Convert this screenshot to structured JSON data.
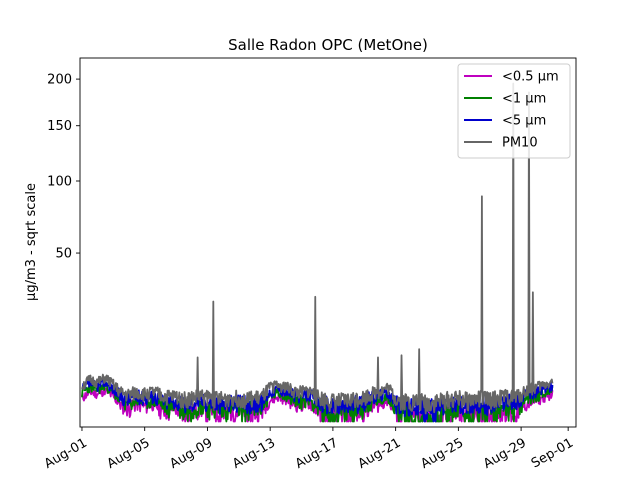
{
  "chart_data": {
    "type": "line",
    "title": "Salle Radon OPC (MetOne)",
    "ylabel": "µg/m3 - sqrt scale",
    "xlabel": "",
    "y_scale": "sqrt",
    "ylim": [
      0,
      225
    ],
    "y_ticks": [
      50,
      100,
      150,
      200
    ],
    "x_range": [
      "Jul-31 21:00",
      "Sep-01 12:00"
    ],
    "x_ticks": [
      "Aug-01",
      "Aug-05",
      "Aug-09",
      "Aug-13",
      "Aug-17",
      "Aug-21",
      "Aug-25",
      "Aug-29",
      "Sep-01"
    ],
    "grid": false,
    "legend_position": "top-right",
    "series": [
      {
        "name": "<0.5 µm",
        "color": "#bf00bf",
        "x": [
          "Aug-01 00:00",
          "Aug-01 12:00",
          "Aug-02 00:00",
          "Aug-02 12:00",
          "Aug-03 00:00",
          "Aug-03 12:00",
          "Aug-04 00:00",
          "Aug-04 12:00",
          "Aug-05 00:00",
          "Aug-05 12:00",
          "Aug-06 00:00",
          "Aug-06 12:00",
          "Aug-07 00:00",
          "Aug-07 12:00",
          "Aug-08 00:00",
          "Aug-08 12:00",
          "Aug-09 00:00",
          "Aug-09 12:00",
          "Aug-10 00:00",
          "Aug-10 12:00",
          "Aug-11 00:00",
          "Aug-11 12:00",
          "Aug-12 00:00",
          "Aug-12 12:00",
          "Aug-13 00:00",
          "Aug-13 12:00",
          "Aug-14 00:00",
          "Aug-14 12:00",
          "Aug-15 00:00",
          "Aug-15 12:00",
          "Aug-16 00:00",
          "Aug-16 12:00",
          "Aug-17 00:00",
          "Aug-17 12:00",
          "Aug-18 00:00",
          "Aug-18 12:00",
          "Aug-19 00:00",
          "Aug-19 12:00",
          "Aug-20 00:00",
          "Aug-20 12:00",
          "Aug-21 00:00",
          "Aug-21 12:00",
          "Aug-22 00:00",
          "Aug-22 12:00",
          "Aug-23 00:00",
          "Aug-23 12:00",
          "Aug-24 00:00",
          "Aug-24 12:00",
          "Aug-25 00:00",
          "Aug-25 12:00",
          "Aug-26 00:00",
          "Aug-26 12:00",
          "Aug-27 00:00",
          "Aug-27 12:00",
          "Aug-28 00:00",
          "Aug-28 12:00",
          "Aug-29 00:00",
          "Aug-29 12:00",
          "Aug-30 00:00",
          "Aug-30 12:00",
          "Aug-31 00:00"
        ],
        "values": [
          1.4,
          2.0,
          1.8,
          2.2,
          1.5,
          0.8,
          0.6,
          0.9,
          0.7,
          0.9,
          0.6,
          0.5,
          0.6,
          0.3,
          0.4,
          0.6,
          0.5,
          0.4,
          0.3,
          0.5,
          0.4,
          0.3,
          0.4,
          0.5,
          1.2,
          1.5,
          1.3,
          0.9,
          0.8,
          1.0,
          0.5,
          0.3,
          0.2,
          0.2,
          0.3,
          0.4,
          0.5,
          0.7,
          0.9,
          1.2,
          0.4,
          0.3,
          0.2,
          0.3,
          0.4,
          0.3,
          0.2,
          0.3,
          0.4,
          0.2,
          0.3,
          0.4,
          0.3,
          0.4,
          0.5,
          0.3,
          0.6,
          1.0,
          1.2,
          1.5,
          1.8
        ]
      },
      {
        "name": "<1 µm",
        "color": "#008000",
        "x": [
          "Aug-01 00:00",
          "Aug-01 12:00",
          "Aug-02 00:00",
          "Aug-02 12:00",
          "Aug-03 00:00",
          "Aug-03 12:00",
          "Aug-04 00:00",
          "Aug-04 12:00",
          "Aug-05 00:00",
          "Aug-05 12:00",
          "Aug-06 00:00",
          "Aug-06 12:00",
          "Aug-07 00:00",
          "Aug-07 12:00",
          "Aug-08 00:00",
          "Aug-08 12:00",
          "Aug-09 00:00",
          "Aug-09 12:00",
          "Aug-10 00:00",
          "Aug-10 12:00",
          "Aug-11 00:00",
          "Aug-11 12:00",
          "Aug-12 00:00",
          "Aug-12 12:00",
          "Aug-13 00:00",
          "Aug-13 12:00",
          "Aug-14 00:00",
          "Aug-14 12:00",
          "Aug-15 00:00",
          "Aug-15 12:00",
          "Aug-16 00:00",
          "Aug-16 12:00",
          "Aug-17 00:00",
          "Aug-17 12:00",
          "Aug-18 00:00",
          "Aug-18 12:00",
          "Aug-19 00:00",
          "Aug-19 12:00",
          "Aug-20 00:00",
          "Aug-20 12:00",
          "Aug-21 00:00",
          "Aug-21 12:00",
          "Aug-22 00:00",
          "Aug-22 12:00",
          "Aug-23 00:00",
          "Aug-23 12:00",
          "Aug-24 00:00",
          "Aug-24 12:00",
          "Aug-25 00:00",
          "Aug-25 12:00",
          "Aug-26 00:00",
          "Aug-26 12:00",
          "Aug-27 00:00",
          "Aug-27 12:00",
          "Aug-28 00:00",
          "Aug-28 12:00",
          "Aug-29 00:00",
          "Aug-29 12:00",
          "Aug-30 00:00",
          "Aug-30 12:00",
          "Aug-31 00:00"
        ],
        "values": [
          1.9,
          2.6,
          2.3,
          2.8,
          1.9,
          1.1,
          0.9,
          1.2,
          1.0,
          1.2,
          0.9,
          0.7,
          0.8,
          0.5,
          0.6,
          0.8,
          0.7,
          0.6,
          0.5,
          0.7,
          0.6,
          0.5,
          0.6,
          0.7,
          1.6,
          1.9,
          1.7,
          1.2,
          1.1,
          1.3,
          0.7,
          0.5,
          0.3,
          0.3,
          0.4,
          0.6,
          0.7,
          1.0,
          1.2,
          1.6,
          0.6,
          0.4,
          0.3,
          0.2,
          0.1,
          0.2,
          0.3,
          0.4,
          0.5,
          0.3,
          0.4,
          0.5,
          0.4,
          0.5,
          0.7,
          0.5,
          0.9,
          1.4,
          1.6,
          2.0,
          2.3
        ]
      },
      {
        "name": "<5 µm",
        "color": "#0000cc",
        "x": [
          "Aug-01 00:00",
          "Aug-01 12:00",
          "Aug-02 00:00",
          "Aug-02 12:00",
          "Aug-03 00:00",
          "Aug-03 12:00",
          "Aug-04 00:00",
          "Aug-04 12:00",
          "Aug-05 00:00",
          "Aug-05 12:00",
          "Aug-06 00:00",
          "Aug-06 12:00",
          "Aug-07 00:00",
          "Aug-07 12:00",
          "Aug-08 00:00",
          "Aug-08 12:00",
          "Aug-09 00:00",
          "Aug-09 12:00",
          "Aug-10 00:00",
          "Aug-10 12:00",
          "Aug-11 00:00",
          "Aug-11 12:00",
          "Aug-12 00:00",
          "Aug-12 12:00",
          "Aug-13 00:00",
          "Aug-13 12:00",
          "Aug-14 00:00",
          "Aug-14 12:00",
          "Aug-15 00:00",
          "Aug-15 12:00",
          "Aug-16 00:00",
          "Aug-16 12:00",
          "Aug-17 00:00",
          "Aug-17 12:00",
          "Aug-18 00:00",
          "Aug-18 12:00",
          "Aug-19 00:00",
          "Aug-19 12:00",
          "Aug-20 00:00",
          "Aug-20 12:00",
          "Aug-21 00:00",
          "Aug-21 12:00",
          "Aug-22 00:00",
          "Aug-22 12:00",
          "Aug-23 00:00",
          "Aug-23 12:00",
          "Aug-24 00:00",
          "Aug-24 12:00",
          "Aug-25 00:00",
          "Aug-25 12:00",
          "Aug-26 00:00",
          "Aug-26 12:00",
          "Aug-27 00:00",
          "Aug-27 12:00",
          "Aug-28 00:00",
          "Aug-28 12:00",
          "Aug-29 00:00",
          "Aug-29 12:00",
          "Aug-30 00:00",
          "Aug-30 12:00",
          "Aug-31 00:00"
        ],
        "values": [
          2.3,
          3.1,
          2.8,
          3.4,
          2.4,
          1.5,
          1.3,
          1.6,
          1.4,
          1.6,
          1.3,
          1.1,
          1.2,
          0.9,
          1.0,
          1.2,
          1.1,
          1.0,
          0.9,
          1.1,
          1.0,
          0.9,
          1.0,
          1.1,
          2.1,
          2.4,
          2.2,
          1.7,
          1.6,
          1.8,
          1.1,
          0.9,
          0.7,
          0.7,
          0.8,
          1.0,
          1.1,
          1.5,
          1.7,
          2.1,
          1.0,
          0.8,
          0.7,
          0.7,
          0.6,
          0.7,
          0.8,
          0.9,
          1.0,
          0.8,
          0.9,
          1.0,
          0.9,
          1.0,
          1.2,
          1.0,
          1.4,
          1.9,
          2.1,
          2.5,
          2.8
        ]
      },
      {
        "name": "PM10",
        "color": "#666666",
        "x": [
          "Aug-01 00:00",
          "Aug-01 12:00",
          "Aug-02 00:00",
          "Aug-02 12:00",
          "Aug-03 00:00",
          "Aug-03 12:00",
          "Aug-04 00:00",
          "Aug-04 12:00",
          "Aug-05 00:00",
          "Aug-05 12:00",
          "Aug-06 00:00",
          "Aug-06 12:00",
          "Aug-07 00:00",
          "Aug-07 12:00",
          "Aug-08 00:00",
          "Aug-08 12:00",
          "Aug-09 00:00",
          "Aug-09 12:00",
          "Aug-10 00:00",
          "Aug-10 12:00",
          "Aug-11 00:00",
          "Aug-11 12:00",
          "Aug-12 00:00",
          "Aug-12 12:00",
          "Aug-13 00:00",
          "Aug-13 12:00",
          "Aug-14 00:00",
          "Aug-14 12:00",
          "Aug-15 00:00",
          "Aug-15 12:00",
          "Aug-16 00:00",
          "Aug-16 12:00",
          "Aug-17 00:00",
          "Aug-17 12:00",
          "Aug-18 00:00",
          "Aug-18 12:00",
          "Aug-19 00:00",
          "Aug-19 12:00",
          "Aug-20 00:00",
          "Aug-20 12:00",
          "Aug-21 00:00",
          "Aug-21 12:00",
          "Aug-22 00:00",
          "Aug-22 12:00",
          "Aug-23 00:00",
          "Aug-23 12:00",
          "Aug-24 00:00",
          "Aug-24 12:00",
          "Aug-25 00:00",
          "Aug-25 12:00",
          "Aug-26 00:00",
          "Aug-26 12:00",
          "Aug-27 00:00",
          "Aug-27 12:00",
          "Aug-28 00:00",
          "Aug-28 12:00",
          "Aug-29 00:00",
          "Aug-29 12:00",
          "Aug-30 00:00",
          "Aug-30 12:00",
          "Aug-31 00:00"
        ],
        "values": [
          2.8,
          3.7,
          3.3,
          4.0,
          2.9,
          1.9,
          1.7,
          2.0,
          1.8,
          2.0,
          1.7,
          1.5,
          1.6,
          1.3,
          1.4,
          1.6,
          1.5,
          1.4,
          1.3,
          1.5,
          1.4,
          1.3,
          1.4,
          1.5,
          2.6,
          2.9,
          2.7,
          2.1,
          2.0,
          2.2,
          1.5,
          1.3,
          1.1,
          1.1,
          1.2,
          1.4,
          1.5,
          1.9,
          2.1,
          2.6,
          1.4,
          1.2,
          1.1,
          1.1,
          1.0,
          1.1,
          1.2,
          1.3,
          1.4,
          1.2,
          1.3,
          1.4,
          1.3,
          1.4,
          1.6,
          1.4,
          1.8,
          2.4,
          2.6,
          3.0,
          3.4
        ],
        "spikes": [
          {
            "x": "Aug-08 09:00",
            "value": 8.0
          },
          {
            "x": "Aug-09 09:00",
            "value": 26.0
          },
          {
            "x": "Aug-15 21:00",
            "value": 28.0
          },
          {
            "x": "Aug-19 21:00",
            "value": 8.0
          },
          {
            "x": "Aug-21 09:00",
            "value": 8.5
          },
          {
            "x": "Aug-22 12:00",
            "value": 10.0
          },
          {
            "x": "Aug-26 12:00",
            "value": 88.0
          },
          {
            "x": "Aug-28 12:00",
            "value": 195.0
          },
          {
            "x": "Aug-29 12:00",
            "value": 185.0
          },
          {
            "x": "Aug-29 18:00",
            "value": 30.0
          }
        ]
      }
    ]
  }
}
